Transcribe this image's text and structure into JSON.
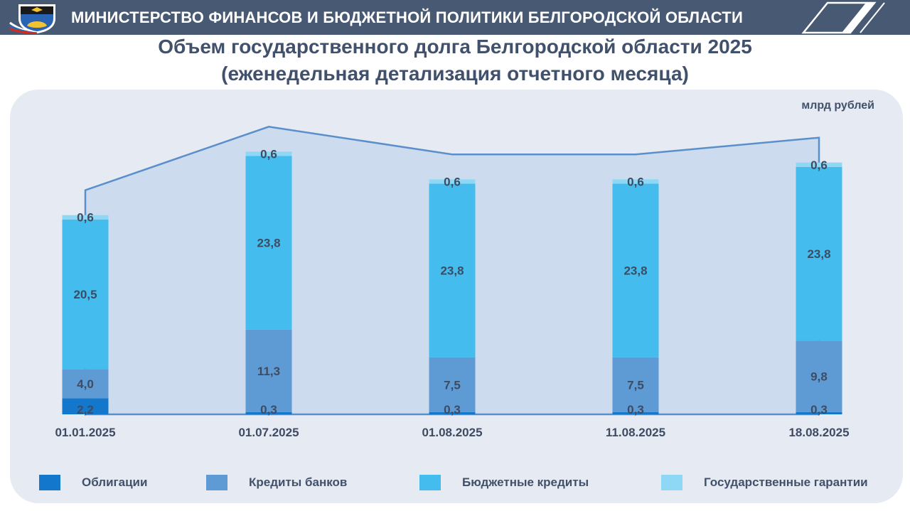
{
  "header": {
    "title": "МИНИСТЕРСТВО ФИНАНСОВ И БЮДЖЕТНОЙ ПОЛИТИКИ БЕЛГОРОДСКОЙ ОБЛАСТИ",
    "background": "#485a73"
  },
  "slide": {
    "title_line1": "Объем государственного долга Белгородской области 2025",
    "title_line2": "(еженедельная детализация отчетного месяца)",
    "unit": "млрд рублей"
  },
  "colors": {
    "obligations": "#1378cc",
    "bank_credits": "#5e9ad4",
    "budget_credits": "#44bdee",
    "guarantees": "#8fd8f5",
    "total_area": "#c8d8ef",
    "total_line": "#5b8fcb",
    "label_text": "#3d4b63"
  },
  "chart_data": {
    "type": "bar",
    "stacked": true,
    "categories": [
      "01.01.2025",
      "01.07.2025",
      "01.08.2025",
      "11.08.2025",
      "18.08.2025"
    ],
    "series": [
      {
        "name": "Облигации",
        "values": [
          2.2,
          0.3,
          0.3,
          0.3,
          0.3
        ],
        "labels": [
          "2,2",
          "0,3",
          "0,3",
          "0,3",
          "0,3"
        ]
      },
      {
        "name": "Кредиты банков",
        "values": [
          4.0,
          11.3,
          7.5,
          7.5,
          9.8
        ],
        "labels": [
          "4,0",
          "11,3",
          "7,5",
          "7,5",
          "9,8"
        ]
      },
      {
        "name": "Бюджетные кредиты",
        "values": [
          20.5,
          23.8,
          23.8,
          23.8,
          23.8
        ],
        "labels": [
          "20,5",
          "23,8",
          "23,8",
          "23,8",
          "23,8"
        ]
      },
      {
        "name": "Государственные гарантии",
        "values": [
          0.6,
          0.6,
          0.6,
          0.6,
          0.6
        ],
        "labels": [
          "0,6",
          "0,6",
          "0,6",
          "0,6",
          "0,6"
        ]
      }
    ],
    "overlay_area": true,
    "legend_position": "bottom",
    "grid": false
  }
}
